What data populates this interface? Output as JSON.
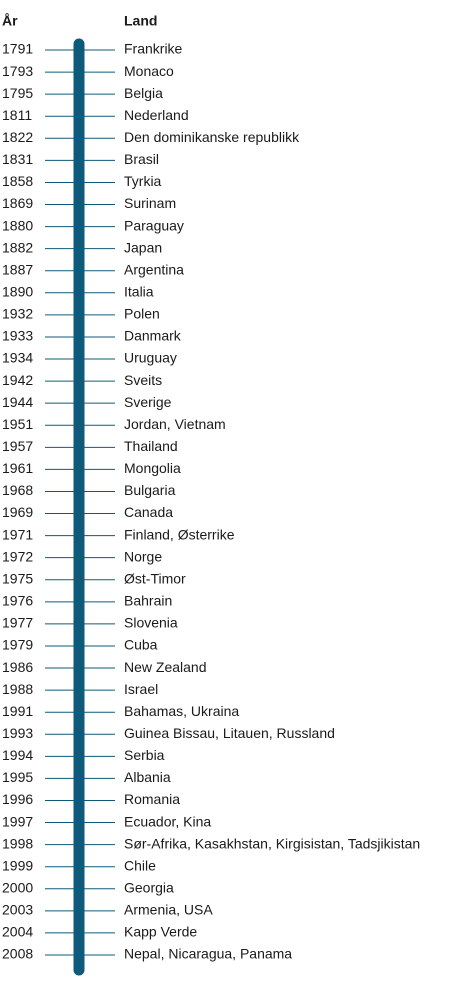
{
  "header": {
    "year": "År",
    "country": "Land"
  },
  "rows": [
    {
      "year": 1791,
      "land": "Frankrike"
    },
    {
      "year": 1793,
      "land": "Monaco"
    },
    {
      "year": 1795,
      "land": "Belgia"
    },
    {
      "year": 1811,
      "land": "Nederland"
    },
    {
      "year": 1822,
      "land": "Den dominikanske republikk"
    },
    {
      "year": 1831,
      "land": "Brasil"
    },
    {
      "year": 1858,
      "land": "Tyrkia"
    },
    {
      "year": 1869,
      "land": "Surinam"
    },
    {
      "year": 1880,
      "land": "Paraguay"
    },
    {
      "year": 1882,
      "land": "Japan"
    },
    {
      "year": 1887,
      "land": "Argentina"
    },
    {
      "year": 1890,
      "land": "Italia"
    },
    {
      "year": 1932,
      "land": "Polen"
    },
    {
      "year": 1933,
      "land": "Danmark"
    },
    {
      "year": 1934,
      "land": "Uruguay"
    },
    {
      "year": 1942,
      "land": "Sveits"
    },
    {
      "year": 1944,
      "land": "Sverige"
    },
    {
      "year": 1951,
      "land": "Jordan, Vietnam"
    },
    {
      "year": 1957,
      "land": "Thailand"
    },
    {
      "year": 1961,
      "land": "Mongolia"
    },
    {
      "year": 1968,
      "land": "Bulgaria"
    },
    {
      "year": 1969,
      "land": "Canada"
    },
    {
      "year": 1971,
      "land": "Finland, Østerrike"
    },
    {
      "year": 1972,
      "land": "Norge"
    },
    {
      "year": 1975,
      "land": "Øst-Timor"
    },
    {
      "year": 1976,
      "land": "Bahrain"
    },
    {
      "year": 1977,
      "land": "Slovenia"
    },
    {
      "year": 1979,
      "land": "Cuba"
    },
    {
      "year": 1986,
      "land": "New Zealand"
    },
    {
      "year": 1988,
      "land": "Israel"
    },
    {
      "year": 1991,
      "land": "Bahamas, Ukraina"
    },
    {
      "year": 1993,
      "land": "Guinea Bissau, Litauen, Russland"
    },
    {
      "year": 1994,
      "land": "Serbia"
    },
    {
      "year": 1995,
      "land": "Albania"
    },
    {
      "year": 1996,
      "land": "Romania"
    },
    {
      "year": 1997,
      "land": "Ecuador, Kina"
    },
    {
      "year": 1998,
      "land": "Sør-Afrika, Kasakhstan, Kirgisistan, Tadsjikistan"
    },
    {
      "year": 1999,
      "land": "Chile"
    },
    {
      "year": 2000,
      "land": "Georgia"
    },
    {
      "year": 2003,
      "land": "Armenia, USA"
    },
    {
      "year": 2004,
      "land": "Kapp Verde"
    },
    {
      "year": 2008,
      "land": "Nepal, Nicaragua, Panama"
    }
  ]
}
